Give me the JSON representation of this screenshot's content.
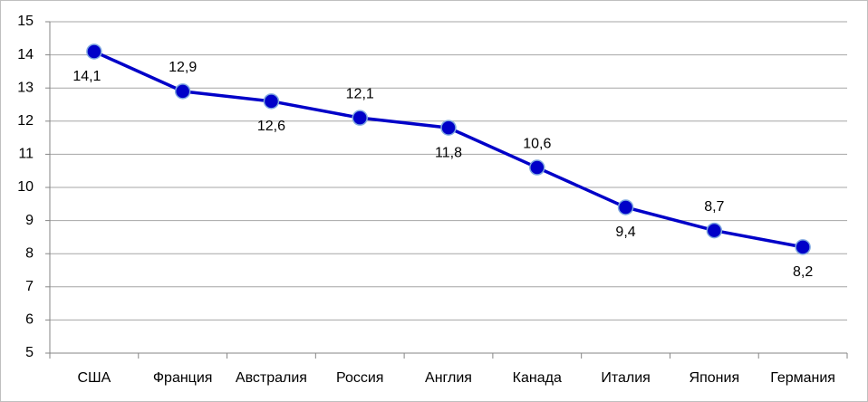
{
  "chart_data": {
    "type": "line",
    "categories": [
      "США",
      "Франция",
      "Австралия",
      "Россия",
      "Англия",
      "Канада",
      "Италия",
      "Япония",
      "Германия"
    ],
    "values": [
      14.1,
      12.9,
      12.6,
      12.1,
      11.8,
      10.6,
      9.4,
      8.7,
      8.2
    ],
    "value_labels": [
      "14,1",
      "12,9",
      "12,6",
      "12,1",
      "11,8",
      "10,6",
      "9,4",
      "8,7",
      "8,2"
    ],
    "color": "#0000c8",
    "ylim": [
      5,
      15
    ],
    "yticks": [
      5,
      6,
      7,
      8,
      9,
      10,
      11,
      12,
      13,
      14,
      15
    ],
    "grid": true
  }
}
